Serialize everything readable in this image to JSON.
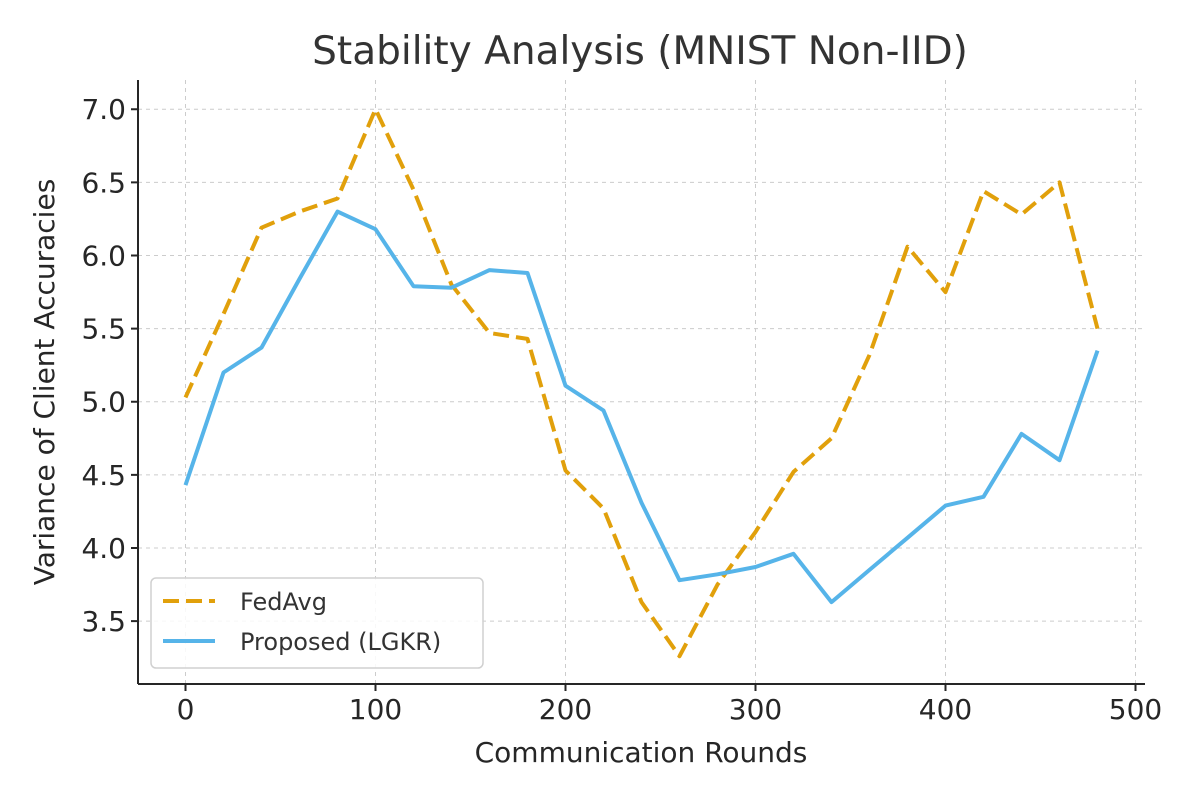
{
  "chart_data": {
    "type": "line",
    "title": "Stability Analysis (MNIST Non-IID)",
    "xlabel": "Communication Rounds",
    "ylabel": "Variance of Client Accuracies",
    "xlim": [
      -25,
      505
    ],
    "ylim": [
      3.07,
      7.2
    ],
    "xticks": [
      0,
      100,
      200,
      300,
      400,
      500
    ],
    "xtick_labels": [
      "0",
      "100",
      "200",
      "300",
      "400",
      "500"
    ],
    "yticks": [
      3.5,
      4.0,
      4.5,
      5.0,
      5.5,
      6.0,
      6.5,
      7.0
    ],
    "ytick_labels": [
      "3.5",
      "4.0",
      "4.5",
      "5.0",
      "5.5",
      "6.0",
      "6.5",
      "7.0"
    ],
    "grid": true,
    "legend_position": "lower-left",
    "x": [
      0,
      20,
      40,
      60,
      80,
      100,
      120,
      140,
      160,
      180,
      200,
      220,
      240,
      260,
      280,
      300,
      320,
      340,
      360,
      380,
      400,
      420,
      440,
      460,
      480
    ],
    "series": [
      {
        "name": "FedAvg",
        "color": "#E1A00B",
        "style": "dashed",
        "values": [
          5.03,
          5.6,
          6.19,
          6.3,
          6.39,
          7.0,
          6.45,
          5.8,
          5.47,
          5.43,
          4.53,
          4.27,
          3.63,
          3.26,
          3.75,
          4.11,
          4.52,
          4.75,
          5.32,
          6.06,
          5.75,
          6.44,
          6.28,
          6.5,
          5.5
        ]
      },
      {
        "name": "Proposed (LGKR)",
        "color": "#56B4E9",
        "style": "solid",
        "values": [
          4.43,
          5.2,
          5.37,
          5.84,
          6.3,
          6.18,
          5.79,
          5.78,
          5.9,
          5.88,
          5.11,
          4.94,
          4.31,
          3.78,
          3.82,
          3.87,
          3.96,
          3.63,
          3.85,
          4.07,
          4.29,
          4.35,
          4.78,
          4.6,
          5.35
        ]
      }
    ]
  }
}
